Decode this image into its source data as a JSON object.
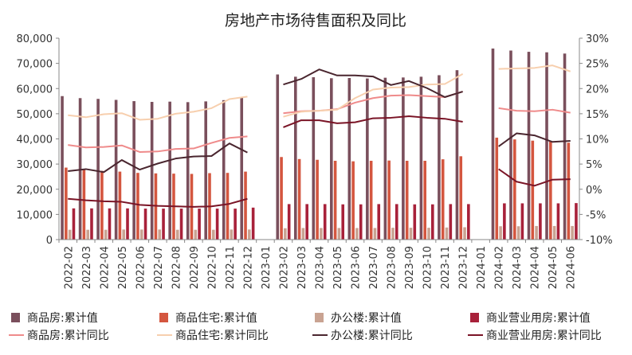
{
  "chart_data": {
    "type": "bar",
    "title": "房地产市场待售面积及同比",
    "categories": [
      "2022-02",
      "2022-03",
      "2022-04",
      "2022-05",
      "2022-06",
      "2022-07",
      "2022-08",
      "2022-09",
      "2022-10",
      "2022-11",
      "2022-12",
      "2023-01",
      "2023-02",
      "2023-03",
      "2023-04",
      "2023-05",
      "2023-06",
      "2023-07",
      "2023-08",
      "2023-09",
      "2023-10",
      "2023-11",
      "2023-12",
      "2024-01",
      "2024-02",
      "2024-03",
      "2024-04",
      "2024-05",
      "2024-06"
    ],
    "y_left": {
      "min": 0,
      "max": 80000,
      "step": 10000,
      "tick_labels": [
        "0",
        "10,000",
        "20,000",
        "30,000",
        "40,000",
        "50,000",
        "60,000",
        "70,000",
        "80,000"
      ]
    },
    "y_right": {
      "min": -10,
      "max": 30,
      "step": 5,
      "tick_labels": [
        "-10%",
        "-5%",
        "0%",
        "5%",
        "10%",
        "15%",
        "20%",
        "25%",
        "30%"
      ]
    },
    "grid": false,
    "legend_position": "bottom",
    "bar_series": [
      {
        "name": "商品房:累计值",
        "color": "#7a4f5c",
        "values": [
          57000,
          56200,
          55900,
          55500,
          55000,
          54700,
          54800,
          54600,
          54900,
          55400,
          56400,
          null,
          65600,
          64700,
          64500,
          64100,
          64200,
          64000,
          64300,
          64400,
          64700,
          65300,
          67300,
          null,
          75900,
          75100,
          74600,
          74400,
          73900
        ]
      },
      {
        "name": "商品住宅:累计值",
        "color": "#d4563f",
        "values": [
          28600,
          27800,
          27300,
          27000,
          26500,
          26300,
          26200,
          26100,
          26400,
          26500,
          27000,
          null,
          32800,
          32000,
          31700,
          31300,
          31100,
          31300,
          31400,
          31300,
          31300,
          31900,
          33100,
          null,
          40500,
          39800,
          39300,
          39000,
          38500
        ]
      },
      {
        "name": "办公楼:累计值",
        "color": "#c9a392",
        "values": [
          3900,
          3900,
          3900,
          4000,
          4000,
          4000,
          3900,
          3900,
          3900,
          4000,
          4000,
          null,
          4500,
          4600,
          4600,
          4600,
          4600,
          4600,
          4700,
          4700,
          4700,
          4800,
          4900,
          null,
          5300,
          5300,
          5400,
          5400,
          5400
        ]
      },
      {
        "name": "商业营业用房:累计值",
        "color": "#a8213a",
        "values": [
          12400,
          12400,
          12400,
          12400,
          12300,
          12300,
          12300,
          12300,
          12300,
          12300,
          12700,
          null,
          14100,
          14100,
          14100,
          14000,
          14000,
          14100,
          14100,
          14000,
          14000,
          14100,
          14100,
          null,
          14400,
          14400,
          14400,
          14400,
          14500
        ]
      }
    ],
    "line_series": [
      {
        "name": "商品房:累计同比",
        "color": "#ef8b8b",
        "values": [
          8.8,
          8.3,
          8.4,
          8.7,
          7.4,
          7.5,
          8.0,
          8.1,
          9.2,
          10.2,
          10.5,
          null,
          15.1,
          15.5,
          15.6,
          15.9,
          17.2,
          18.1,
          18.6,
          18.7,
          18.5,
          18.3,
          19.4,
          null,
          16.1,
          15.6,
          15.5,
          15.8,
          15.2
        ]
      },
      {
        "name": "商品住宅:累计同比",
        "color": "#f7cfae",
        "values": [
          14.7,
          14.3,
          14.9,
          15.1,
          13.8,
          14.0,
          15.0,
          15.4,
          16.1,
          17.9,
          18.4,
          null,
          14.4,
          15.4,
          15.6,
          15.8,
          18.1,
          19.8,
          20.2,
          20.3,
          20.8,
          20.9,
          22.9,
          null,
          23.9,
          24.0,
          24.1,
          24.6,
          23.4
        ]
      },
      {
        "name": "办公楼:累计同比",
        "color": "#4a262f",
        "values": [
          3.6,
          4.0,
          3.4,
          5.8,
          3.9,
          5.1,
          6.1,
          6.5,
          6.6,
          9.1,
          7.3,
          null,
          20.8,
          21.9,
          23.8,
          22.6,
          22.6,
          22.4,
          20.7,
          21.5,
          20.1,
          18.3,
          19.4,
          null,
          8.5,
          11.1,
          10.7,
          9.4,
          9.6
        ]
      },
      {
        "name": "商业营业用房:累计同比",
        "color": "#7a1426",
        "values": [
          -1.9,
          -2.2,
          -2.4,
          -2.5,
          -3.1,
          -3.3,
          -3.4,
          -3.5,
          -3.4,
          -2.9,
          -1.9,
          null,
          12.3,
          13.7,
          13.7,
          13.1,
          13.3,
          14.1,
          14.2,
          14.5,
          14.2,
          14.0,
          13.4,
          null,
          4.0,
          1.5,
          0.7,
          1.9,
          2.0
        ]
      }
    ]
  }
}
